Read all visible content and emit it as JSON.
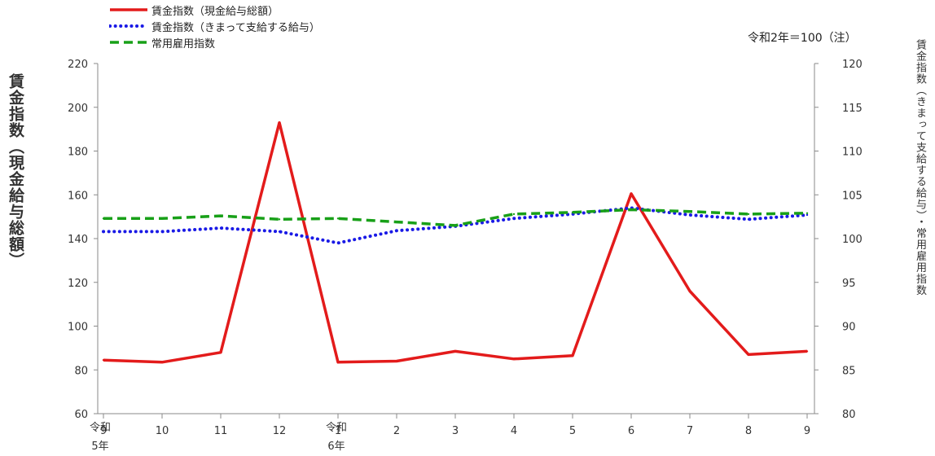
{
  "note": "令和2年＝100（注）",
  "left_axis_label": "賃金指数（現金給与総額）",
  "right_axis_label": "賃金指数（きまって支給する給与）・常用雇用指数",
  "era_labels": [
    {
      "line1": "令和",
      "line2": "5年"
    },
    {
      "line1": "令和",
      "line2": "6年"
    }
  ],
  "chart_data": {
    "type": "line",
    "categories": [
      "9",
      "10",
      "11",
      "12",
      "1",
      "2",
      "3",
      "4",
      "5",
      "6",
      "7",
      "8",
      "9"
    ],
    "y_left": {
      "min": 60,
      "max": 220,
      "step": 20,
      "ticks": [
        "60",
        "80",
        "100",
        "120",
        "140",
        "160",
        "180",
        "200",
        "220"
      ]
    },
    "y_right": {
      "min": 80,
      "max": 120,
      "step": 5,
      "ticks": [
        "80",
        "85",
        "90",
        "95",
        "100",
        "105",
        "110",
        "115",
        "120"
      ]
    },
    "legend_placement": "top-left",
    "grid": false,
    "series": [
      {
        "name": "賃金指数（現金給与総額）",
        "axis": "left",
        "color": "#e31b1b",
        "style": "solid",
        "values": [
          84.5,
          83.5,
          88.0,
          193.0,
          83.5,
          84.0,
          88.5,
          85.0,
          86.5,
          160.5,
          116.0,
          87.0,
          88.5
        ]
      },
      {
        "name": "賃金指数（きまって支給する給与）",
        "axis": "right",
        "color": "#1a1ae6",
        "style": "dotted",
        "values": [
          100.8,
          100.8,
          101.2,
          100.8,
          99.5,
          100.9,
          101.4,
          102.3,
          102.8,
          103.5,
          102.7,
          102.2,
          102.7
        ]
      },
      {
        "name": "常用雇用指数",
        "axis": "right",
        "color": "#18a018",
        "style": "dashed",
        "values": [
          102.3,
          102.3,
          102.6,
          102.2,
          102.3,
          101.9,
          101.5,
          102.8,
          103.0,
          103.3,
          103.1,
          102.8,
          102.9
        ]
      }
    ]
  }
}
